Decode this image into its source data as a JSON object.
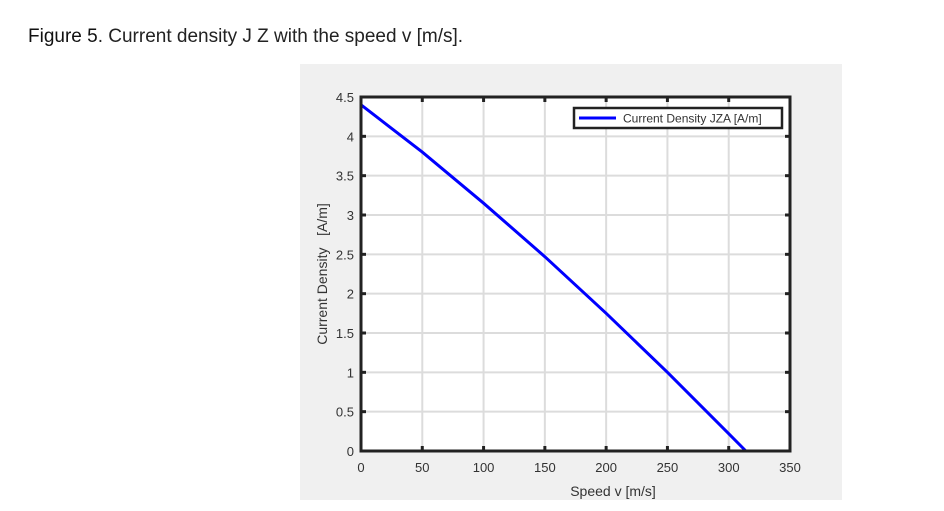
{
  "caption": {
    "label": "Figure 5",
    "text": ". Current density J Z with the speed v [m/s]."
  },
  "chart_data": {
    "type": "line",
    "title": "",
    "xlabel": "Speed v [m/s]",
    "ylabel": "Current Density   [A/m]",
    "xlim": [
      0,
      350
    ],
    "ylim": [
      0,
      4.5
    ],
    "xticks": [
      "0",
      "50",
      "100",
      "150",
      "200",
      "250",
      "300",
      "350"
    ],
    "yticks": [
      "0",
      "0.5",
      "1",
      "1.5",
      "2",
      "2.5",
      "3",
      "3.5",
      "4",
      "4.5"
    ],
    "grid": true,
    "legend_position": "top-right",
    "series": [
      {
        "name": "Current Density JZA [A/m]",
        "color": "#0000ff",
        "x": [
          0,
          50,
          100,
          150,
          200,
          250,
          300,
          314
        ],
        "y": [
          4.4,
          3.8,
          3.15,
          2.47,
          1.75,
          1.0,
          0.22,
          0
        ]
      }
    ]
  }
}
